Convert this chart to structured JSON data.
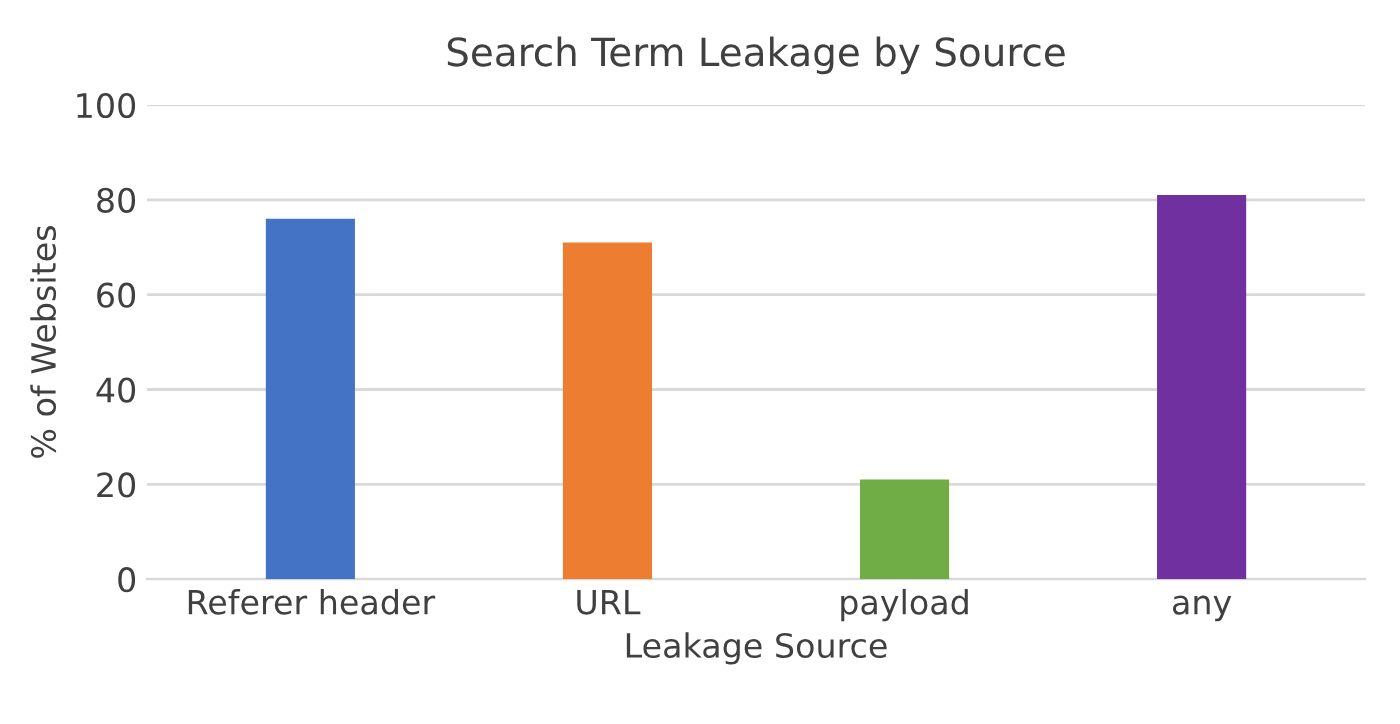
{
  "chart_data": {
    "type": "bar",
    "title": "Search Term Leakage by Source",
    "xlabel": "Leakage Source",
    "ylabel": "% of Websites",
    "categories": [
      "Referer header",
      "URL",
      "payload",
      "any"
    ],
    "values": [
      76,
      71,
      21,
      81
    ],
    "colors": [
      "#4472c4",
      "#ed7d31",
      "#70ad47",
      "#7030a0"
    ],
    "ylim": [
      0,
      100
    ],
    "yticks": [
      0,
      20,
      40,
      60,
      80,
      100
    ],
    "grid": "y"
  }
}
